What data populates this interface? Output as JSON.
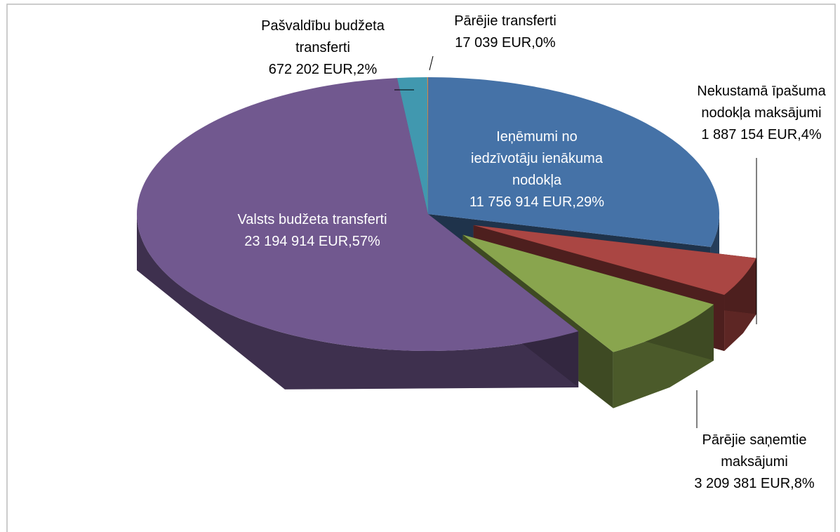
{
  "chart_data": {
    "type": "pie",
    "categories": [
      "Ieņēmumi no iedzīvotāju ienākuma nodokļa",
      "Nekustamā īpašuma nodokļa maksājumi",
      "Pārējie saņemtie maksājumi",
      "Valsts budžeta transferti",
      "Pašvaldību budžeta transferti",
      "Pārējie transferti"
    ],
    "values": [
      11756914,
      1887154,
      3209381,
      23194914,
      672202,
      17039
    ],
    "value_labels": [
      "11 756 914 EUR,29%",
      "1 887 154 EUR,4%",
      "3 209 381 EUR,8%",
      "23 194 914 EUR,57%",
      "672 202 EUR,2%",
      "17 039 EUR,0%"
    ],
    "colors": [
      "#4572a7",
      "#aa4643",
      "#89a54e",
      "#71588f",
      "#4198af",
      "#db843d"
    ]
  }
}
